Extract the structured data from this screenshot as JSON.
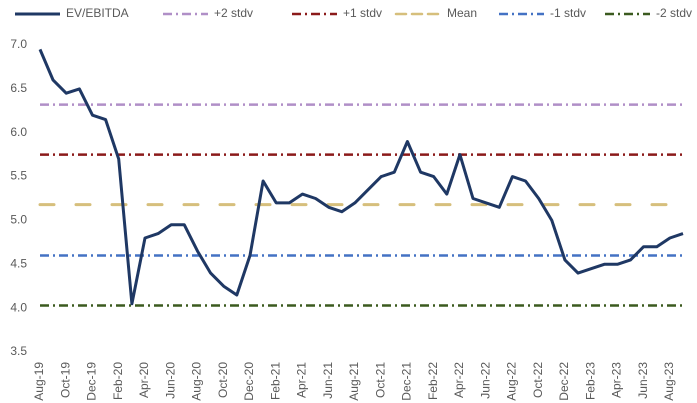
{
  "chart_data": {
    "type": "line",
    "categories": [
      "Aug-19",
      null,
      "Oct-19",
      null,
      "Dec-19",
      null,
      "Feb-20",
      null,
      "Apr-20",
      null,
      "Jun-20",
      null,
      "Aug-20",
      null,
      "Oct-20",
      null,
      "Dec-20",
      null,
      "Feb-21",
      null,
      "Apr-21",
      null,
      "Jun-21",
      null,
      "Aug-21",
      null,
      "Oct-21",
      null,
      "Dec-21",
      null,
      "Feb-22",
      null,
      "Apr-22",
      null,
      "Jun-22",
      null,
      "Aug-22",
      null,
      "Oct-22",
      null,
      "Dec-22",
      null,
      "Feb-23",
      null,
      "Apr-23",
      null,
      "Jun-23",
      null,
      "Aug-23",
      null
    ],
    "series": [
      {
        "name": "EV/EBITDA",
        "color": "#1f3864",
        "values": [
          6.95,
          6.6,
          6.45,
          6.5,
          6.2,
          6.15,
          5.7,
          4.05,
          4.8,
          4.85,
          4.95,
          4.95,
          4.65,
          4.4,
          4.25,
          4.15,
          4.6,
          5.45,
          5.2,
          5.2,
          5.3,
          5.25,
          5.15,
          5.1,
          5.2,
          5.35,
          5.5,
          5.55,
          5.9,
          5.55,
          5.5,
          5.3,
          5.75,
          5.25,
          5.2,
          5.15,
          5.5,
          5.45,
          5.25,
          5.0,
          4.55,
          4.4,
          4.45,
          4.5,
          4.5,
          4.55,
          4.7,
          4.7,
          4.8,
          4.85
        ]
      }
    ],
    "reference_lines": [
      {
        "name": "+2 stdv",
        "color": "#b08fc7",
        "value": 6.32,
        "line_style": "dash-dot"
      },
      {
        "name": "+1 stdv",
        "color": "#8b1a1a",
        "value": 5.75,
        "line_style": "dash-dot"
      },
      {
        "name": "Mean",
        "color": "#d6bf7c",
        "value": 5.18,
        "line_style": "dash"
      },
      {
        "name": "-1 stdv",
        "color": "#4472c4",
        "value": 4.6,
        "line_style": "dash-dot"
      },
      {
        "name": "-2 stdv",
        "color": "#3b5a1f",
        "value": 4.03,
        "line_style": "dash-dot"
      }
    ],
    "ylim": [
      3.5,
      7.0
    ],
    "yticks": [
      3.5,
      {
        "value": 4.0,
        "label": "4.0"
      },
      4.5,
      {
        "value": 5.0,
        "label": "5.0"
      },
      5.5,
      {
        "value": 6.0,
        "label": "6.0"
      },
      6.5,
      {
        "value": 7.0,
        "label": "7.0"
      }
    ],
    "grid": false,
    "legend": "top"
  }
}
